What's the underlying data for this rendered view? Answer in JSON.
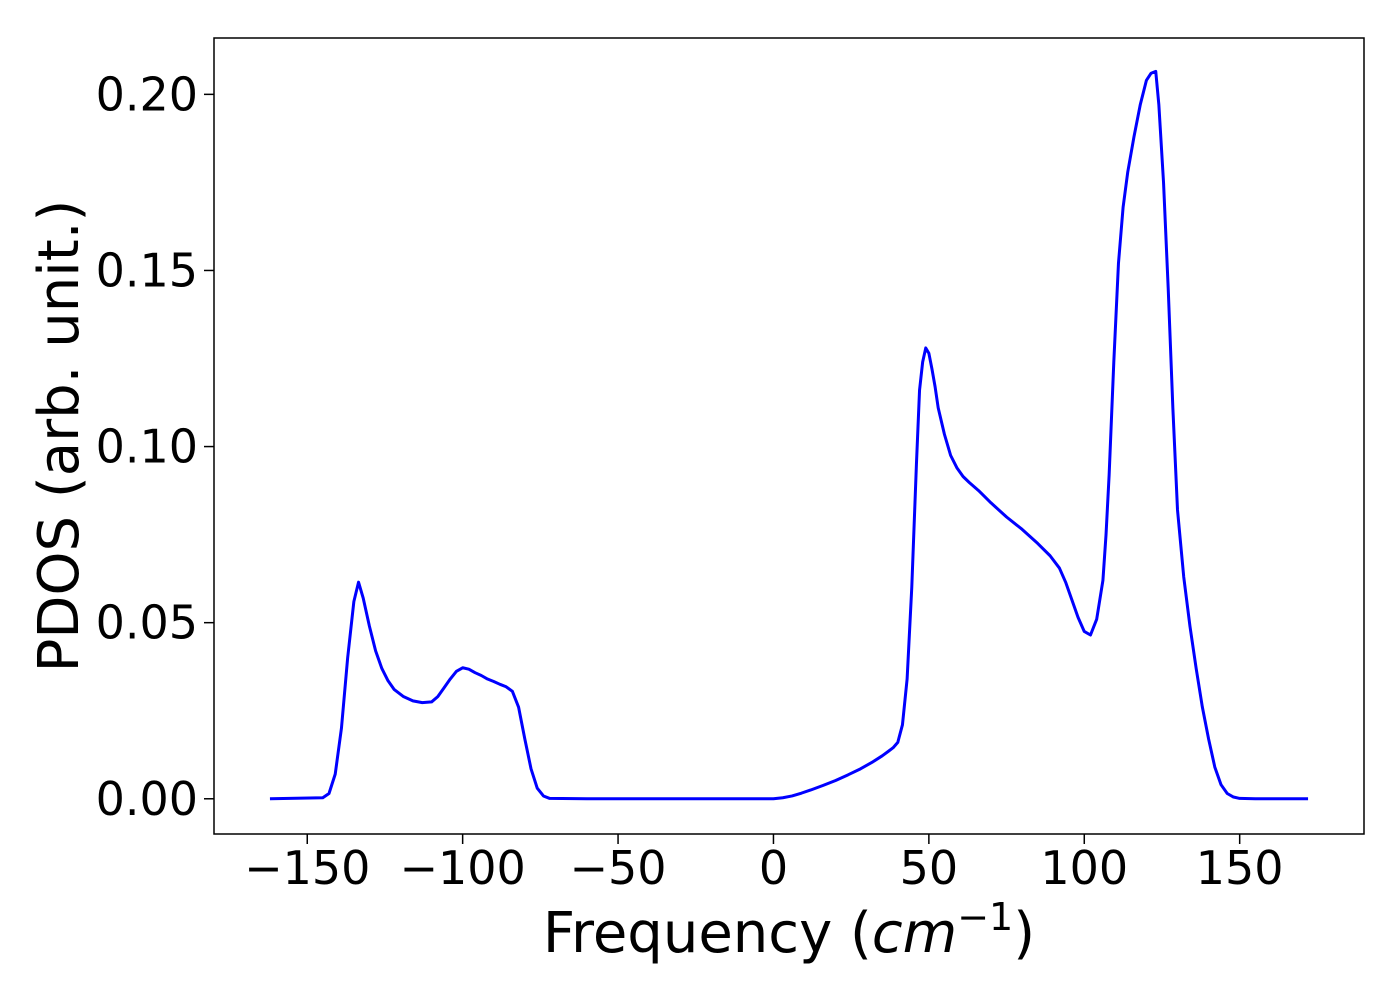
{
  "chart_data": {
    "type": "line",
    "title": "",
    "xlabel": {
      "prefix": "Frequency (",
      "unit": "cm",
      "exponent": "−1",
      "suffix": ")"
    },
    "ylabel": "PDOS (arb. unit.)",
    "xlim": [
      -180,
      190
    ],
    "ylim": [
      -0.01,
      0.216
    ],
    "grid": false,
    "line_color": "#0000ff",
    "x_ticks": [
      {
        "value": -150,
        "label": "−150"
      },
      {
        "value": -100,
        "label": "−100"
      },
      {
        "value": -50,
        "label": "−50"
      },
      {
        "value": 0,
        "label": "0"
      },
      {
        "value": 50,
        "label": "50"
      },
      {
        "value": 100,
        "label": "100"
      },
      {
        "value": 150,
        "label": "150"
      }
    ],
    "y_ticks": [
      {
        "value": 0.0,
        "label": "0.00"
      },
      {
        "value": 0.05,
        "label": "0.05"
      },
      {
        "value": 0.1,
        "label": "0.10"
      },
      {
        "value": 0.15,
        "label": "0.15"
      },
      {
        "value": 0.2,
        "label": "0.20"
      }
    ],
    "series": [
      {
        "x": [
          -162,
          -145,
          -143,
          -141,
          -139,
          -137,
          -135,
          -133.5,
          -132,
          -130,
          -128,
          -126,
          -124,
          -122,
          -119,
          -116,
          -113,
          -110,
          -108,
          -106,
          -104,
          -102,
          -100,
          -98,
          -96,
          -94,
          -92,
          -90,
          -88,
          -86,
          -84,
          -82,
          -80,
          -78,
          -76,
          -74,
          -72,
          -60,
          -40,
          -20,
          -10,
          -5,
          0,
          3,
          6,
          9,
          12,
          16,
          20,
          24,
          28,
          32,
          35,
          37,
          38.5,
          40,
          41.5,
          43,
          44.5,
          46,
          47,
          48,
          49,
          50,
          51,
          52,
          53,
          55,
          57,
          59,
          61,
          63,
          66,
          70,
          75,
          80,
          85,
          89,
          92,
          94,
          96,
          98,
          100,
          102,
          104,
          106,
          107,
          108,
          109.5,
          111,
          112.5,
          114,
          116,
          118,
          120,
          121.5,
          123,
          124,
          125.5,
          127,
          128.5,
          130,
          132,
          134,
          136,
          138,
          140,
          142,
          144,
          146,
          148,
          150,
          155,
          160,
          165,
          172
        ],
        "y": [
          0.0,
          0.0003,
          0.0015,
          0.007,
          0.02,
          0.04,
          0.056,
          0.0615,
          0.057,
          0.049,
          0.042,
          0.037,
          0.0335,
          0.031,
          0.029,
          0.0278,
          0.0273,
          0.0275,
          0.029,
          0.0315,
          0.034,
          0.0362,
          0.0372,
          0.0368,
          0.0358,
          0.035,
          0.034,
          0.0333,
          0.0325,
          0.0318,
          0.0305,
          0.026,
          0.017,
          0.0085,
          0.003,
          0.0008,
          0.0001,
          0.0,
          0.0,
          0.0,
          0.0,
          0.0,
          0.0,
          0.0003,
          0.0008,
          0.0016,
          0.0025,
          0.0038,
          0.0052,
          0.0068,
          0.0085,
          0.0105,
          0.0122,
          0.0135,
          0.0145,
          0.016,
          0.021,
          0.034,
          0.06,
          0.095,
          0.116,
          0.124,
          0.128,
          0.1265,
          0.122,
          0.117,
          0.111,
          0.1035,
          0.0975,
          0.094,
          0.0915,
          0.0898,
          0.0875,
          0.084,
          0.08,
          0.0765,
          0.0725,
          0.069,
          0.0655,
          0.0615,
          0.0565,
          0.0515,
          0.0475,
          0.0465,
          0.051,
          0.062,
          0.075,
          0.092,
          0.124,
          0.152,
          0.168,
          0.178,
          0.188,
          0.197,
          0.204,
          0.206,
          0.2065,
          0.197,
          0.175,
          0.145,
          0.111,
          0.082,
          0.063,
          0.049,
          0.037,
          0.026,
          0.017,
          0.009,
          0.004,
          0.0015,
          0.0005,
          0.0001,
          0.0,
          0.0,
          0.0,
          0.0
        ]
      }
    ]
  }
}
